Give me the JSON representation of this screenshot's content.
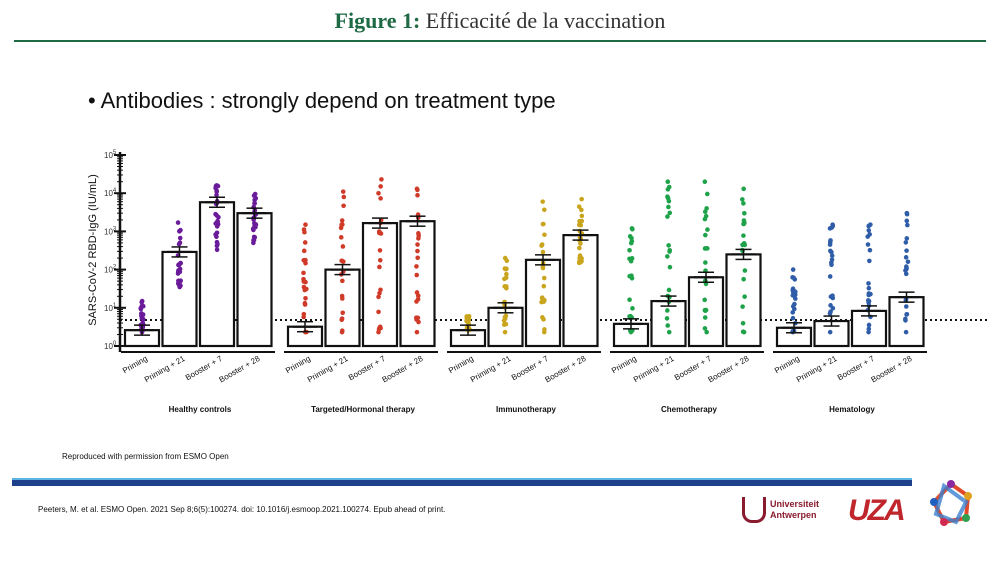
{
  "header": {
    "title_prefix": "Figure 1:",
    "title_rest": " Efficacité de la vaccination"
  },
  "slide": {
    "bullet": "•  Antibodies : strongly depend on treatment type"
  },
  "footer": {
    "note": "Reproduced with permission from ESMO Open",
    "citation": "Peeters, M. et al. ESMO Open. 2021 Sep 8;6(5):100274.  doi: 10.1016/j.esmoop.2021.100274.  Epub ahead of print.",
    "logo_ua": [
      "Universiteit",
      "Antwerpen"
    ],
    "logo_uza": "UZA"
  },
  "chart_data": {
    "type": "bar",
    "scale": "log10",
    "ylabel": "SARS-CoV-2 RBD-IgG (IU/mL)",
    "ylim": [
      1,
      100000
    ],
    "yticks": [
      "10^0",
      "10^1",
      "10^2",
      "10^3",
      "10^4",
      "10^5"
    ],
    "threshold": 4.8,
    "categories": [
      "Priming",
      "Priming + 21",
      "Booster + 7",
      "Booster + 28"
    ],
    "groups": [
      {
        "name": "Healthy controls",
        "color": "#6a1b9a",
        "values": [
          2.6,
          290,
          5800,
          3000
        ],
        "ranges": [
          [
            2.3,
            15
          ],
          [
            35,
            1700
          ],
          [
            330,
            16000
          ],
          [
            500,
            9500
          ]
        ]
      },
      {
        "name": "Targeted/Hormonal therapy",
        "color": "#d03a28",
        "values": [
          3.2,
          100,
          1650,
          1850
        ],
        "ranges": [
          [
            2.3,
            1500
          ],
          [
            2.3,
            11000
          ],
          [
            2.3,
            23000
          ],
          [
            2.3,
            13000
          ]
        ]
      },
      {
        "name": "Immunotherapy",
        "color": "#c9a51e",
        "values": [
          2.6,
          10,
          180,
          800
        ],
        "ranges": [
          [
            2.6,
            6
          ],
          [
            2.3,
            200
          ],
          [
            2.3,
            6000
          ],
          [
            150,
            7000
          ]
        ]
      },
      {
        "name": "Chemotherapy",
        "color": "#1fa34a",
        "values": [
          3.8,
          15,
          63,
          250
        ],
        "ranges": [
          [
            2.3,
            1200
          ],
          [
            2.3,
            20000
          ],
          [
            2.3,
            20000
          ],
          [
            2.3,
            13000
          ]
        ]
      },
      {
        "name": "Hematology",
        "color": "#2f5da8",
        "values": [
          3.0,
          4.5,
          8.3,
          19
        ],
        "ranges": [
          [
            2.3,
            100
          ],
          [
            2.3,
            1500
          ],
          [
            2.3,
            1500
          ],
          [
            2.3,
            3000
          ]
        ]
      }
    ]
  }
}
